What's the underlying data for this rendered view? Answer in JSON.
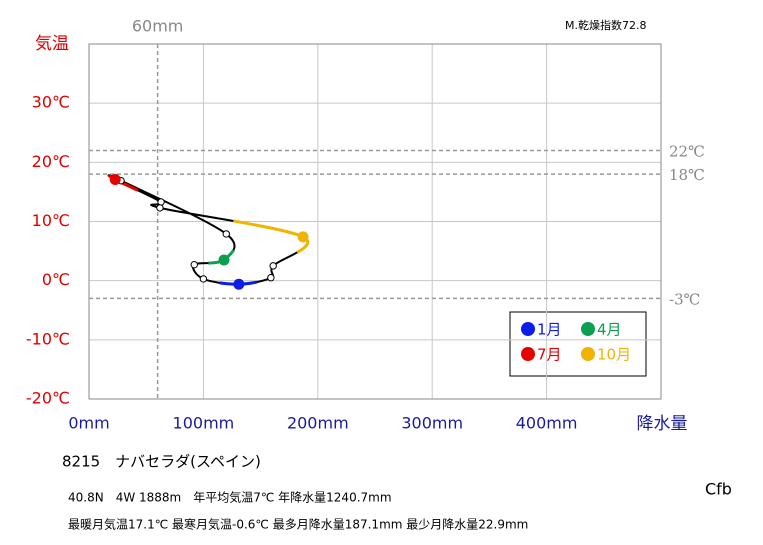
{
  "chart_data": {
    "type": "climograph",
    "title": "8215　ナバセラダ(スペイン)",
    "index_note": "M.乾燥指数72.8",
    "climate_class": "Cfb",
    "info_lines": [
      "40.8N　4W 1888m　年平均気温7℃ 年降水量1240.7mm",
      "最暖月気温17.1℃ 最寒月気温-0.6℃ 最多月降水量187.1mm 最少月降水量22.9mm"
    ],
    "y_label": "気温",
    "x_label": "降水量",
    "categories": [
      "1月",
      null,
      null,
      "4月",
      null,
      null,
      "7月",
      null,
      null,
      "10月",
      null,
      null
    ],
    "colors": [
      "#0a1ee6",
      null,
      null,
      "#0aa050",
      null,
      null,
      "#e60000",
      null,
      null,
      "#f0b400",
      null,
      null
    ],
    "x": [
      131,
      100,
      92,
      118,
      120,
      28,
      22.9,
      63,
      62,
      187.1,
      161,
      159
    ],
    "y": [
      -0.6,
      0.3,
      2.7,
      3.5,
      7.9,
      16.9,
      17.1,
      13.3,
      12.3,
      7.4,
      2.5,
      0.5
    ],
    "xlim": [
      0,
      500
    ],
    "ylim": [
      -20,
      40
    ],
    "xticks": [
      {
        "value": 0,
        "label": "0mm"
      },
      {
        "value": 100,
        "label": "100mm"
      },
      {
        "value": 200,
        "label": "200mm"
      },
      {
        "value": 300,
        "label": "300mm"
      },
      {
        "value": 400,
        "label": "400mm"
      }
    ],
    "yticks": [
      {
        "value": -20,
        "label": "-20℃"
      },
      {
        "value": -10,
        "label": "-10℃"
      },
      {
        "value": 0,
        "label": "0℃"
      },
      {
        "value": 10,
        "label": "10℃"
      },
      {
        "value": 20,
        "label": "20℃"
      },
      {
        "value": 30,
        "label": "30℃"
      }
    ],
    "h_reference": [
      {
        "value": 22,
        "label": "22℃"
      },
      {
        "value": 18,
        "label": "18℃"
      },
      {
        "value": -3,
        "label": "-3℃"
      }
    ],
    "v_reference": [
      {
        "value": 60,
        "label": "60mm"
      }
    ],
    "grid": true
  }
}
